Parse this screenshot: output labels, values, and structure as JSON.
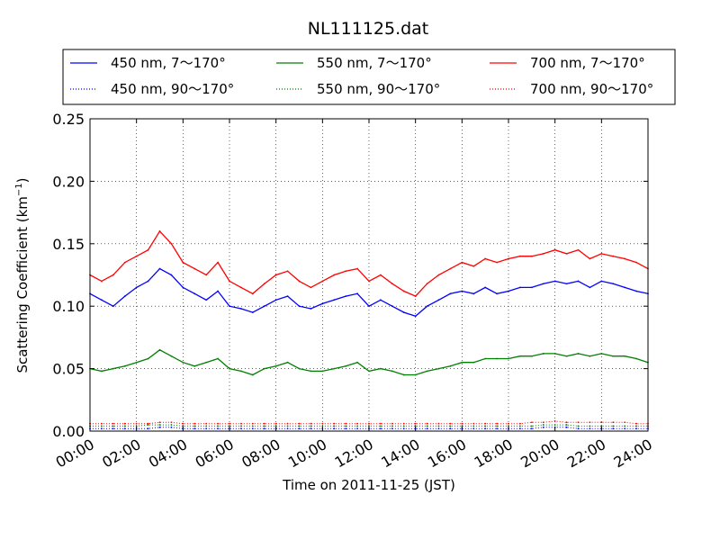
{
  "chart_data": {
    "type": "line",
    "title": "NL111125.dat",
    "xlabel": "Time on 2011-11-25 (JST)",
    "ylabel_main": "Scattering Coefficient (km",
    "ylabel_sup": "−1",
    "ylabel_close": ")",
    "xlim_hours": [
      0,
      24
    ],
    "ylim": [
      0,
      0.25
    ],
    "x_ticks": [
      "00:00",
      "02:00",
      "04:00",
      "06:00",
      "08:00",
      "10:00",
      "12:00",
      "14:00",
      "16:00",
      "18:00",
      "20:00",
      "22:00",
      "24:00"
    ],
    "x_tick_hours": [
      0,
      2,
      4,
      6,
      8,
      10,
      12,
      14,
      16,
      18,
      20,
      22,
      24
    ],
    "y_ticks": [
      "0.00",
      "0.05",
      "0.10",
      "0.15",
      "0.20",
      "0.25"
    ],
    "y_tick_values": [
      0,
      0.05,
      0.1,
      0.15,
      0.2,
      0.25
    ],
    "grid": true,
    "legend_position": "top",
    "x_hours": [
      0,
      0.5,
      1,
      1.5,
      2,
      2.5,
      3,
      3.5,
      4,
      4.5,
      5,
      5.5,
      6,
      6.5,
      7,
      7.5,
      8,
      8.5,
      9,
      9.5,
      10,
      10.5,
      11,
      11.5,
      12,
      12.5,
      13,
      13.5,
      14,
      14.5,
      15,
      15.5,
      16,
      16.5,
      17,
      17.5,
      18,
      18.5,
      19,
      19.5,
      20,
      20.5,
      21,
      21.5,
      22,
      22.5,
      23,
      23.5,
      24
    ],
    "series": [
      {
        "name": "450 nm, 7～170°",
        "color": "#0000ff",
        "style": "solid",
        "values": [
          0.11,
          0.105,
          0.1,
          0.108,
          0.115,
          0.12,
          0.13,
          0.125,
          0.115,
          0.11,
          0.105,
          0.112,
          0.1,
          0.098,
          0.095,
          0.1,
          0.105,
          0.108,
          0.1,
          0.098,
          0.102,
          0.105,
          0.108,
          0.11,
          0.1,
          0.105,
          0.1,
          0.095,
          0.092,
          0.1,
          0.105,
          0.11,
          0.112,
          0.11,
          0.115,
          0.11,
          0.112,
          0.115,
          0.115,
          0.118,
          0.12,
          0.118,
          0.12,
          0.115,
          0.12,
          0.118,
          0.115,
          0.112,
          0.11
        ]
      },
      {
        "name": "450 nm, 90～170°",
        "color": "#0000ff",
        "style": "dotted",
        "values": [
          0.002,
          0.002,
          0.002,
          0.002,
          0.002,
          0.002,
          0.003,
          0.003,
          0.002,
          0.002,
          0.002,
          0.002,
          0.002,
          0.002,
          0.002,
          0.002,
          0.002,
          0.002,
          0.002,
          0.002,
          0.002,
          0.002,
          0.002,
          0.002,
          0.002,
          0.002,
          0.002,
          0.002,
          0.002,
          0.002,
          0.002,
          0.002,
          0.002,
          0.002,
          0.002,
          0.002,
          0.002,
          0.002,
          0.002,
          0.003,
          0.003,
          0.003,
          0.002,
          0.002,
          0.002,
          0.002,
          0.002,
          0.002,
          0.002
        ]
      },
      {
        "name": "550 nm, 7～170°",
        "color": "#008000",
        "style": "solid",
        "values": [
          0.05,
          0.048,
          0.05,
          0.052,
          0.055,
          0.058,
          0.065,
          0.06,
          0.055,
          0.052,
          0.055,
          0.058,
          0.05,
          0.048,
          0.045,
          0.05,
          0.052,
          0.055,
          0.05,
          0.048,
          0.048,
          0.05,
          0.052,
          0.055,
          0.048,
          0.05,
          0.048,
          0.045,
          0.045,
          0.048,
          0.05,
          0.052,
          0.055,
          0.055,
          0.058,
          0.058,
          0.058,
          0.06,
          0.06,
          0.062,
          0.062,
          0.06,
          0.062,
          0.06,
          0.062,
          0.06,
          0.06,
          0.058,
          0.055
        ]
      },
      {
        "name": "550 nm, 90～170°",
        "color": "#008000",
        "style": "dotted",
        "values": [
          0.004,
          0.004,
          0.004,
          0.004,
          0.004,
          0.005,
          0.005,
          0.005,
          0.004,
          0.004,
          0.004,
          0.004,
          0.004,
          0.004,
          0.004,
          0.004,
          0.004,
          0.004,
          0.004,
          0.004,
          0.004,
          0.004,
          0.004,
          0.004,
          0.004,
          0.004,
          0.004,
          0.004,
          0.004,
          0.004,
          0.004,
          0.004,
          0.004,
          0.004,
          0.004,
          0.004,
          0.004,
          0.004,
          0.004,
          0.005,
          0.005,
          0.005,
          0.004,
          0.004,
          0.004,
          0.004,
          0.004,
          0.004,
          0.004
        ]
      },
      {
        "name": "700 nm, 7～170°",
        "color": "#ff0000",
        "style": "solid",
        "values": [
          0.125,
          0.12,
          0.125,
          0.135,
          0.14,
          0.145,
          0.16,
          0.15,
          0.135,
          0.13,
          0.125,
          0.135,
          0.12,
          0.115,
          0.11,
          0.118,
          0.125,
          0.128,
          0.12,
          0.115,
          0.12,
          0.125,
          0.128,
          0.13,
          0.12,
          0.125,
          0.118,
          0.112,
          0.108,
          0.118,
          0.125,
          0.13,
          0.135,
          0.132,
          0.138,
          0.135,
          0.138,
          0.14,
          0.14,
          0.142,
          0.145,
          0.142,
          0.145,
          0.138,
          0.142,
          0.14,
          0.138,
          0.135,
          0.13
        ]
      },
      {
        "name": "700 nm, 90～170°",
        "color": "#ff0000",
        "style": "dotted",
        "values": [
          0.006,
          0.006,
          0.006,
          0.006,
          0.006,
          0.006,
          0.007,
          0.007,
          0.006,
          0.006,
          0.006,
          0.006,
          0.006,
          0.006,
          0.006,
          0.006,
          0.006,
          0.006,
          0.006,
          0.006,
          0.006,
          0.006,
          0.006,
          0.006,
          0.006,
          0.006,
          0.006,
          0.006,
          0.006,
          0.006,
          0.006,
          0.006,
          0.006,
          0.006,
          0.006,
          0.006,
          0.006,
          0.006,
          0.007,
          0.007,
          0.008,
          0.007,
          0.007,
          0.007,
          0.007,
          0.007,
          0.007,
          0.006,
          0.006
        ]
      }
    ],
    "legend_items": [
      {
        "label": "450 nm, 7～170°",
        "color": "#0000ff",
        "style": "solid"
      },
      {
        "label": "550 nm, 7～170°",
        "color": "#008000",
        "style": "solid"
      },
      {
        "label": "700 nm, 7～170°",
        "color": "#ff0000",
        "style": "solid"
      },
      {
        "label": "450 nm, 90～170°",
        "color": "#0000ff",
        "style": "dotted"
      },
      {
        "label": "550 nm, 90～170°",
        "color": "#008000",
        "style": "dotted"
      },
      {
        "label": "700 nm, 90～170°",
        "color": "#ff0000",
        "style": "dotted"
      }
    ]
  }
}
